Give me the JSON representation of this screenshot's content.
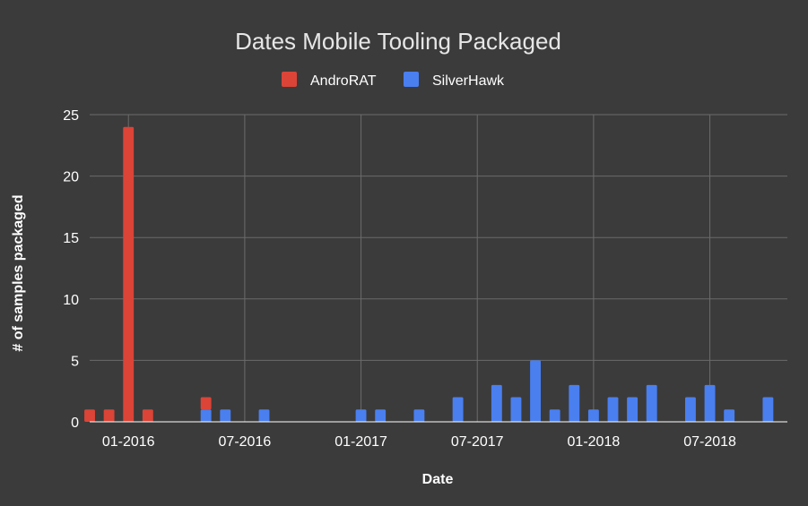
{
  "chart_data": {
    "type": "bar",
    "stacked": true,
    "title": "Dates Mobile Tooling Packaged",
    "xlabel": "Date",
    "ylabel": "# of samples packaged",
    "ylim": [
      0,
      25
    ],
    "y_ticks": [
      0,
      5,
      10,
      15,
      20,
      25
    ],
    "x_ticks": [
      "01-2016",
      "07-2016",
      "01-2017",
      "07-2017",
      "01-2018",
      "07-2018"
    ],
    "xlim": [
      "2015-11",
      "2018-10"
    ],
    "grid": true,
    "legend_position": "top",
    "categories": [
      "2015-11",
      "2015-12",
      "2016-01",
      "2016-02",
      "2016-03",
      "2016-04",
      "2016-05",
      "2016-06",
      "2016-07",
      "2016-08",
      "2016-09",
      "2016-10",
      "2016-11",
      "2016-12",
      "2017-01",
      "2017-02",
      "2017-03",
      "2017-04",
      "2017-05",
      "2017-06",
      "2017-07",
      "2017-08",
      "2017-09",
      "2017-10",
      "2017-11",
      "2017-12",
      "2018-01",
      "2018-02",
      "2018-03",
      "2018-04",
      "2018-05",
      "2018-06",
      "2018-07",
      "2018-08",
      "2018-09",
      "2018-10"
    ],
    "series": [
      {
        "name": "SilverHawk",
        "color": "#4a7ff0",
        "values": [
          0,
          0,
          0,
          0,
          0,
          0,
          1,
          1,
          0,
          1,
          0,
          0,
          0,
          0,
          1,
          1,
          0,
          1,
          0,
          2,
          0,
          3,
          2,
          5,
          1,
          3,
          1,
          2,
          2,
          3,
          0,
          2,
          3,
          1,
          0,
          2
        ]
      },
      {
        "name": "AndroRAT",
        "color": "#db4437",
        "values": [
          1,
          1,
          24,
          1,
          0,
          0,
          1,
          0,
          0,
          0,
          0,
          0,
          0,
          0,
          0,
          0,
          0,
          0,
          0,
          0,
          0,
          0,
          0,
          0,
          0,
          0,
          0,
          0,
          0,
          0,
          0,
          0,
          0,
          0,
          0,
          0
        ]
      }
    ]
  }
}
